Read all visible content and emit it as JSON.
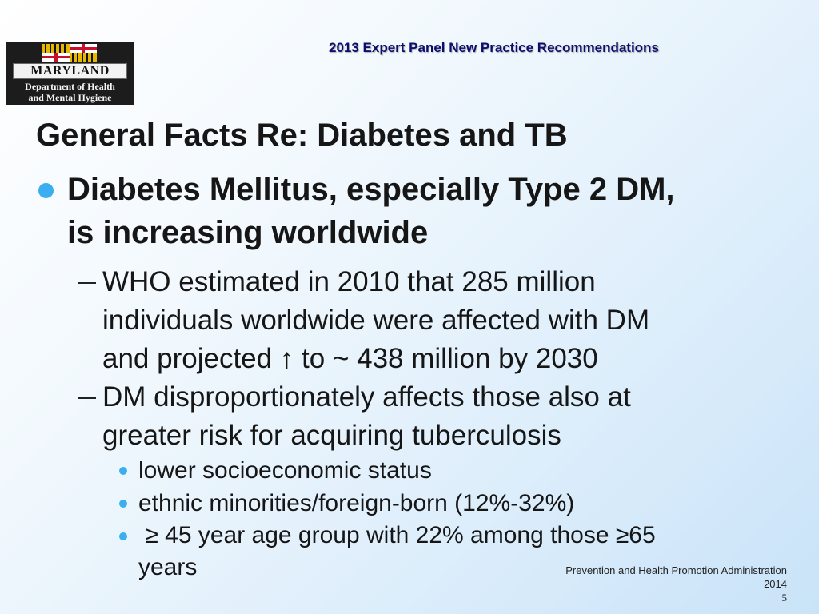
{
  "header": {
    "title": "2013 Expert Panel New Practice Recommendations"
  },
  "logo": {
    "name": "MARYLAND",
    "subtitle_line1": "Department of Health",
    "subtitle_line2": "and Mental Hygiene"
  },
  "slide": {
    "title": "General Facts Re: Diabetes and TB",
    "bullet": {
      "lines": [
        "Diabetes Mellitus, especially Type 2 DM,",
        "is increasing worldwide"
      ],
      "subitems": [
        {
          "lines": [
            "WHO estimated in 2010 that 285 million",
            "individuals worldwide were affected with DM",
            "and projected ↑ to ~ 438 million by 2030"
          ]
        },
        {
          "lines": [
            "DM disproportionately affects those also at",
            "greater risk for acquiring tuberculosis"
          ],
          "subitems": [
            {
              "lines": [
                "lower socioeconomic status"
              ]
            },
            {
              "lines": [
                "ethnic minorities/foreign-born (12%-32%)"
              ]
            },
            {
              "lines": [
                " ≥ 45 year age group with 22% among those ≥65",
                "years"
              ]
            }
          ]
        }
      ]
    }
  },
  "footer": {
    "org": "Prevention and Health Promotion Administration",
    "year": "2014",
    "page": "5"
  },
  "colors": {
    "bullet": "#3aaef0",
    "header_text": "#0d0d6e"
  }
}
